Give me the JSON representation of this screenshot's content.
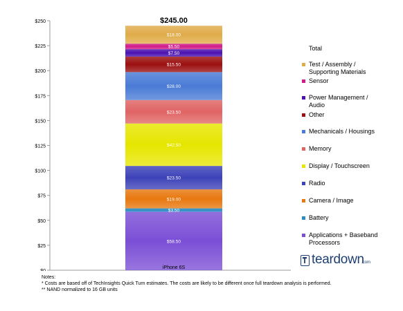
{
  "chart_data": {
    "type": "stacked-bar",
    "categories": [
      "iPhone 6S"
    ],
    "total_label": "$245.00",
    "ylim": [
      0,
      250
    ],
    "yticks": [
      0,
      25,
      50,
      75,
      100,
      125,
      150,
      175,
      200,
      225,
      250
    ],
    "ytick_labels": [
      "$0",
      "$25",
      "$50",
      "$75",
      "$100",
      "$125",
      "$150",
      "$175",
      "$200",
      "$225",
      "$250"
    ],
    "grid": false,
    "legend_position": "right",
    "legend_title": "Total",
    "series": [
      {
        "name": "Applications + Baseband Processors",
        "value": 58.5,
        "label": "$58.50",
        "color": "#7b4fd6"
      },
      {
        "name": "Battery",
        "value": 3.5,
        "label": "$3.50",
        "color": "#2b8cc4"
      },
      {
        "name": "Camera / Image",
        "value": 19.0,
        "label": "$19.00",
        "color": "#e8780f"
      },
      {
        "name": "Radio",
        "value": 23.5,
        "label": "$23.50",
        "color": "#3d43b8"
      },
      {
        "name": "Display / Touchscreen",
        "value": 42.5,
        "label": "$42.50",
        "color": "#e6e600"
      },
      {
        "name": "Memory",
        "value": 23.5,
        "label": "$23.50",
        "color": "#e06464"
      },
      {
        "name": "Mechanicals / Housings",
        "value": 28.0,
        "label": "$28.00",
        "color": "#4a7bd6"
      },
      {
        "name": "Other",
        "value": 15.5,
        "label": "$15.50",
        "color": "#9c1010"
      },
      {
        "name": "Power Management / Audio",
        "value": 7.5,
        "label": "$7.50",
        "color": "#4b12b0"
      },
      {
        "name": "Sensor",
        "value": 5.5,
        "label": "$5.50",
        "color": "#d01c8b"
      },
      {
        "name": "Test / Assembly / Supporting Materials",
        "value": 18.0,
        "label": "$18.00",
        "color": "#e0ac4a"
      }
    ],
    "legend_order": [
      {
        "lines": [
          "Test / Assembly /",
          "Supporting Materials"
        ],
        "color": "#e0ac4a"
      },
      {
        "lines": [
          "Sensor"
        ],
        "color": "#d01c8b"
      },
      {
        "lines": [
          "Power Management /",
          "Audio"
        ],
        "color": "#4b12b0"
      },
      {
        "lines": [
          "Other"
        ],
        "color": "#9c1010"
      },
      {
        "lines": [
          "Mechanicals / Housings"
        ],
        "color": "#4a7bd6"
      },
      {
        "lines": [
          "Memory"
        ],
        "color": "#e06464"
      },
      {
        "lines": [
          "Display / Touchscreen"
        ],
        "color": "#e6e600"
      },
      {
        "lines": [
          "Radio"
        ],
        "color": "#3d43b8"
      },
      {
        "lines": [
          "Camera / Image"
        ],
        "color": "#e8780f"
      },
      {
        "lines": [
          "Battery"
        ],
        "color": "#2b8cc4"
      },
      {
        "lines": [
          "Applications + Baseband",
          "Processors"
        ],
        "color": "#7b4fd6"
      }
    ]
  },
  "notes": {
    "heading": "Notes:",
    "line1": "* Costs are based off of TechInsights Quick Turn estimates.  The costs are likely to be different once full teardown analysis is performed.",
    "line2": "** NAND normalized to 16 GB units"
  },
  "logo": {
    "word": "teardown",
    "domain": ".com",
    "icon": "teardown-logo-icon"
  }
}
